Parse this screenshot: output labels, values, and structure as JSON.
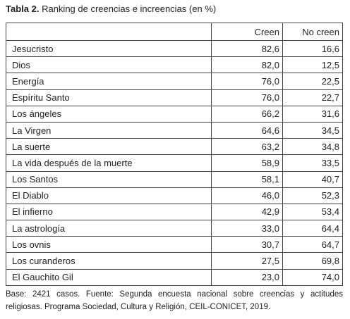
{
  "header": {
    "label": "Tabla 2.",
    "title": "Ranking de creencias e increencias (en %)"
  },
  "table": {
    "columns": [
      "",
      "Creen",
      "No creen"
    ],
    "rows": [
      [
        "Jesucristo",
        "82,6",
        "16,6"
      ],
      [
        "Dios",
        "82,0",
        "12,5"
      ],
      [
        "Energía",
        "76,0",
        "22,5"
      ],
      [
        "Espíritu Santo",
        "76,0",
        "22,7"
      ],
      [
        "Los ángeles",
        "66,2",
        "31,6"
      ],
      [
        "La Virgen",
        "64,6",
        "34,5"
      ],
      [
        "La suerte",
        "63,2",
        "34,8"
      ],
      [
        "La vida después de la muerte",
        "58,9",
        "33,5"
      ],
      [
        "Los Santos",
        "58,1",
        "40,7"
      ],
      [
        "El Diablo",
        "46,0",
        "52,3"
      ],
      [
        "El infierno",
        "42,9",
        "53,4"
      ],
      [
        "La astrología",
        "33,0",
        "64,4"
      ],
      [
        "Los ovnis",
        "30,7",
        "64,7"
      ],
      [
        "Los curanderos",
        "27,5",
        "69,8"
      ],
      [
        "El Gauchito Gil",
        "23,0",
        "74,0"
      ]
    ]
  },
  "footer": {
    "note": "Base: 2421 casos. Fuente: Segunda encuesta nacional sobre creencias y actitudes religiosas. Programa Sociedad, Cultura y Religión, CEIL-CONICET, 2019."
  }
}
